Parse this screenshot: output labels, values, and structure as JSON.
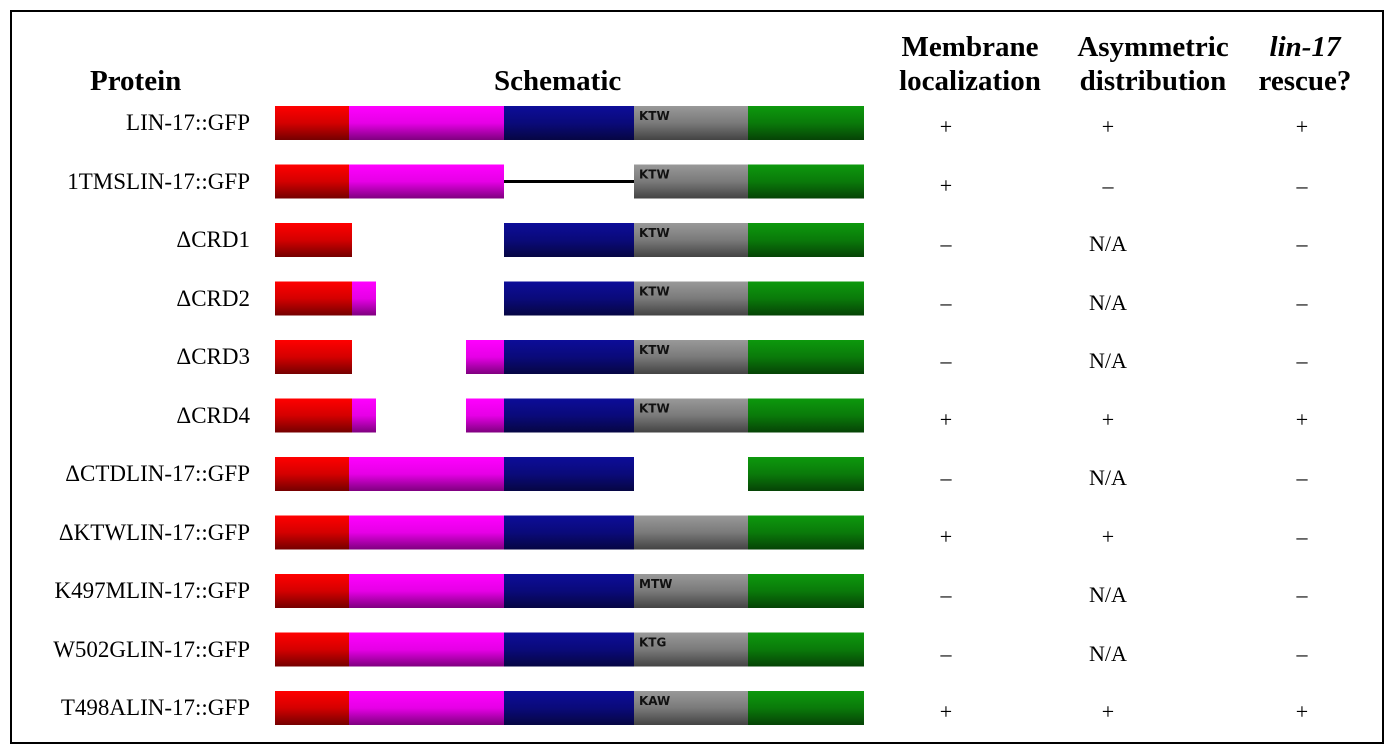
{
  "headers": {
    "protein": "Protein",
    "schematic": "Schematic",
    "membrane_line1": "Membrane",
    "membrane_line2": "localization",
    "asym_line1": "Asymmetric",
    "asym_line2": "distribution",
    "rescue_line1": "lin-17",
    "rescue_line2": "rescue?"
  },
  "domain_colors": {
    "red": "#d40000",
    "magenta": "#e600e6",
    "navy": "#0a0a7a",
    "gray": "#7a7a7a",
    "green": "#0a7a0a",
    "linker": "#000000"
  },
  "rows": [
    {
      "protein": "LIN-17::GFP",
      "motif": "KTW",
      "membrane": "+",
      "asymmetric": "+",
      "rescue": "+",
      "segments": [
        "red",
        "magenta",
        "navy",
        "gray",
        "green"
      ]
    },
    {
      "protein": "1TMSLIN-17::GFP",
      "motif": "KTW",
      "membrane": "+",
      "asymmetric": "–",
      "rescue": "–",
      "segments": [
        "red",
        "magenta",
        "linker",
        "gray",
        "green"
      ]
    },
    {
      "protein": "ΔCRD1",
      "motif": "KTW",
      "membrane": "–",
      "asymmetric": "N/A",
      "rescue": "–",
      "segments": [
        "red-short",
        "navy",
        "gray",
        "green"
      ]
    },
    {
      "protein": "ΔCRD2",
      "motif": "KTW",
      "membrane": "–",
      "asymmetric": "N/A",
      "rescue": "–",
      "segments": [
        "red-short",
        "magenta-stub",
        "navy",
        "gray",
        "green"
      ]
    },
    {
      "protein": "ΔCRD3",
      "motif": "KTW",
      "membrane": "–",
      "asymmetric": "N/A",
      "rescue": "–",
      "segments": [
        "red-short",
        "magenta-tail",
        "navy",
        "gray",
        "green"
      ]
    },
    {
      "protein": "ΔCRD4",
      "motif": "KTW",
      "membrane": "+",
      "asymmetric": "+",
      "rescue": "+",
      "segments": [
        "red-short",
        "magenta-stub",
        "magenta-tail",
        "navy",
        "gray",
        "green"
      ]
    },
    {
      "protein": "ΔCTDLIN-17::GFP",
      "motif": "",
      "membrane": "–",
      "asymmetric": "N/A",
      "rescue": "–",
      "segments": [
        "red",
        "magenta",
        "navy",
        "green"
      ]
    },
    {
      "protein": "ΔKTWLIN-17::GFP",
      "motif": "",
      "membrane": "+",
      "asymmetric": "+",
      "rescue": "–",
      "segments": [
        "red",
        "magenta",
        "navy",
        "gray",
        "green"
      ]
    },
    {
      "protein": "K497MLIN-17::GFP",
      "motif": "MTW",
      "membrane": "–",
      "asymmetric": "N/A",
      "rescue": "–",
      "segments": [
        "red",
        "magenta",
        "navy",
        "gray",
        "green"
      ]
    },
    {
      "protein": "W502GLIN-17::GFP",
      "motif": "KTG",
      "membrane": "–",
      "asymmetric": "N/A",
      "rescue": "–",
      "segments": [
        "red",
        "magenta",
        "navy",
        "gray",
        "green"
      ]
    },
    {
      "protein": "T498ALIN-17::GFP",
      "motif": "KAW",
      "membrane": "+",
      "asymmetric": "+",
      "rescue": "+",
      "segments": [
        "red",
        "magenta",
        "navy",
        "gray",
        "green"
      ]
    }
  ]
}
